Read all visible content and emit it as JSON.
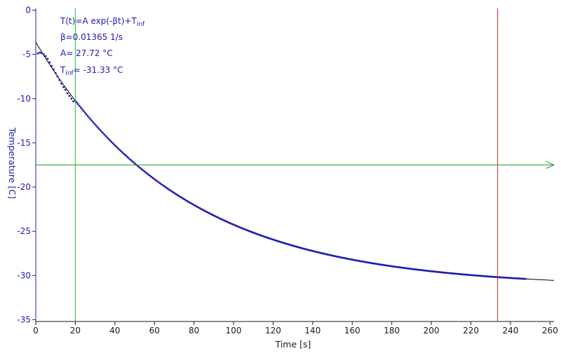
{
  "chart_data": {
    "type": "scatter",
    "xlabel": "Time [s]",
    "ylabel": "Temperature [C]",
    "xlim": [
      0,
      262
    ],
    "ylim": [
      -35.2,
      0.2
    ],
    "xticks": [
      0,
      20,
      40,
      60,
      80,
      100,
      120,
      140,
      160,
      180,
      200,
      220,
      240,
      260
    ],
    "yticks": [
      0,
      -5,
      -10,
      -15,
      -20,
      -25,
      -30,
      -35
    ],
    "grid": false,
    "fit": {
      "formula": "T(t)=A exp(-βt)+T",
      "formula_sub": "inf",
      "beta_text": "β=0.01365 1/s",
      "A_text": "A= 27.72 °C",
      "tinf_prefix": "T",
      "tinf_sub": "inf",
      "tinf_value": "= -31.33 °C",
      "beta": 0.01365,
      "A": 27.72,
      "T_inf": -31.33,
      "x_range": [
        0,
        262
      ]
    },
    "series": [
      {
        "color": "#1c1cb0",
        "points": [
          [
            1,
            -4.9
          ],
          [
            2,
            -4.8
          ],
          [
            3,
            -4.85
          ],
          [
            4,
            -5.0
          ],
          [
            5,
            -5.2
          ],
          [
            6,
            -5.5
          ],
          [
            7,
            -5.9
          ],
          [
            8,
            -6.3
          ],
          [
            9,
            -6.7
          ],
          [
            10,
            -7.1
          ],
          [
            11,
            -7.5
          ],
          [
            12,
            -7.9
          ],
          [
            13,
            -8.3
          ],
          [
            14,
            -8.7
          ],
          [
            15,
            -9.0
          ],
          [
            16,
            -9.4
          ],
          [
            17,
            -9.7
          ],
          [
            18,
            -10.0
          ],
          [
            19,
            -10.3
          ]
        ],
        "model_sampled_from_t": 20,
        "model_sampled_to_t": 248,
        "model_sampled_step": 0.7
      }
    ],
    "reference_lines": [
      {
        "orientation": "vertical",
        "x": 20,
        "color": "#2dbb2d"
      },
      {
        "orientation": "vertical",
        "x": 233.5,
        "color": "#cc2222"
      },
      {
        "orientation": "horizontal",
        "y": -17.5,
        "color": "#2a9a2a",
        "arrow": true
      }
    ],
    "colors": {
      "axis": "#1a1a1a",
      "y_axis": "#1c1cb0",
      "data": "#1c1cb0",
      "fit": "#000000"
    }
  }
}
